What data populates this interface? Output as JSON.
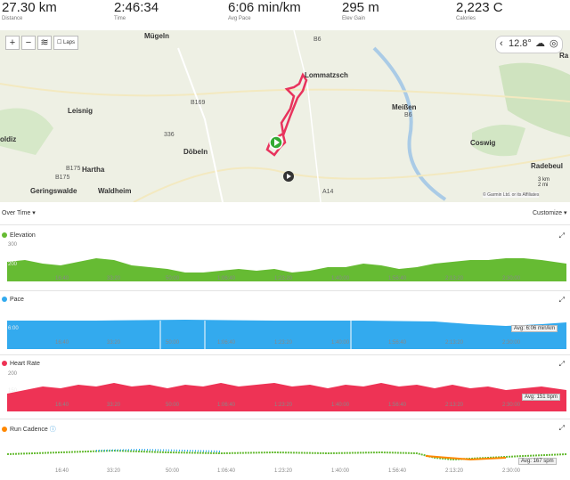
{
  "stats": [
    {
      "value": "27.30 km",
      "label": "Distance"
    },
    {
      "value": "2:46:34",
      "label": "Time"
    },
    {
      "value": "6:06 min/km",
      "label": "Avg Pace"
    },
    {
      "value": "295 m",
      "label": "Elev Gain"
    },
    {
      "value": "2,223 C",
      "label": "Calories"
    }
  ],
  "map": {
    "laps_label": "Laps",
    "weather_temp": "12.8°",
    "places": [
      "Mügeln",
      "Lommatzsch",
      "Leisnig",
      "Meißen",
      "oldiz",
      "Coswig",
      "Döbeln",
      "Hartha",
      "Geringswalde",
      "Waldheim",
      "Radebeul",
      "Ra"
    ],
    "roads": [
      "B6",
      "B169",
      "336",
      "B175",
      "B175",
      "A14",
      "B6"
    ],
    "scale": [
      "3 km",
      "2 mi"
    ],
    "attribution": "© Garmin Ltd. or its Affiliates"
  },
  "controls": {
    "view_label": "Over Time ▾",
    "customize_label": "Customize ▾"
  },
  "charts": [
    {
      "title": "Elevation",
      "color": "#66bb33",
      "ytick": "300",
      "ymid": "200",
      "avg": ""
    },
    {
      "title": "Pace",
      "color": "#33aaee",
      "ytick": "",
      "ymid": "6:00",
      "avg": "Avg: 6:06 min/km"
    },
    {
      "title": "Heart Rate",
      "color": "#ee3355",
      "ytick": "200",
      "ymid": "150",
      "avg": "Avg: 151 bpm"
    },
    {
      "title": "Run Cadence",
      "color": "#ff8800",
      "ytick": "",
      "ymid": "",
      "avg": "Avg: 167 spm"
    }
  ],
  "xticks": [
    "16:40",
    "33:20",
    "50:00",
    "1:06:40",
    "1:23:20",
    "1:40:00",
    "1:56:40",
    "2:13:20",
    "2:30:00"
  ]
}
